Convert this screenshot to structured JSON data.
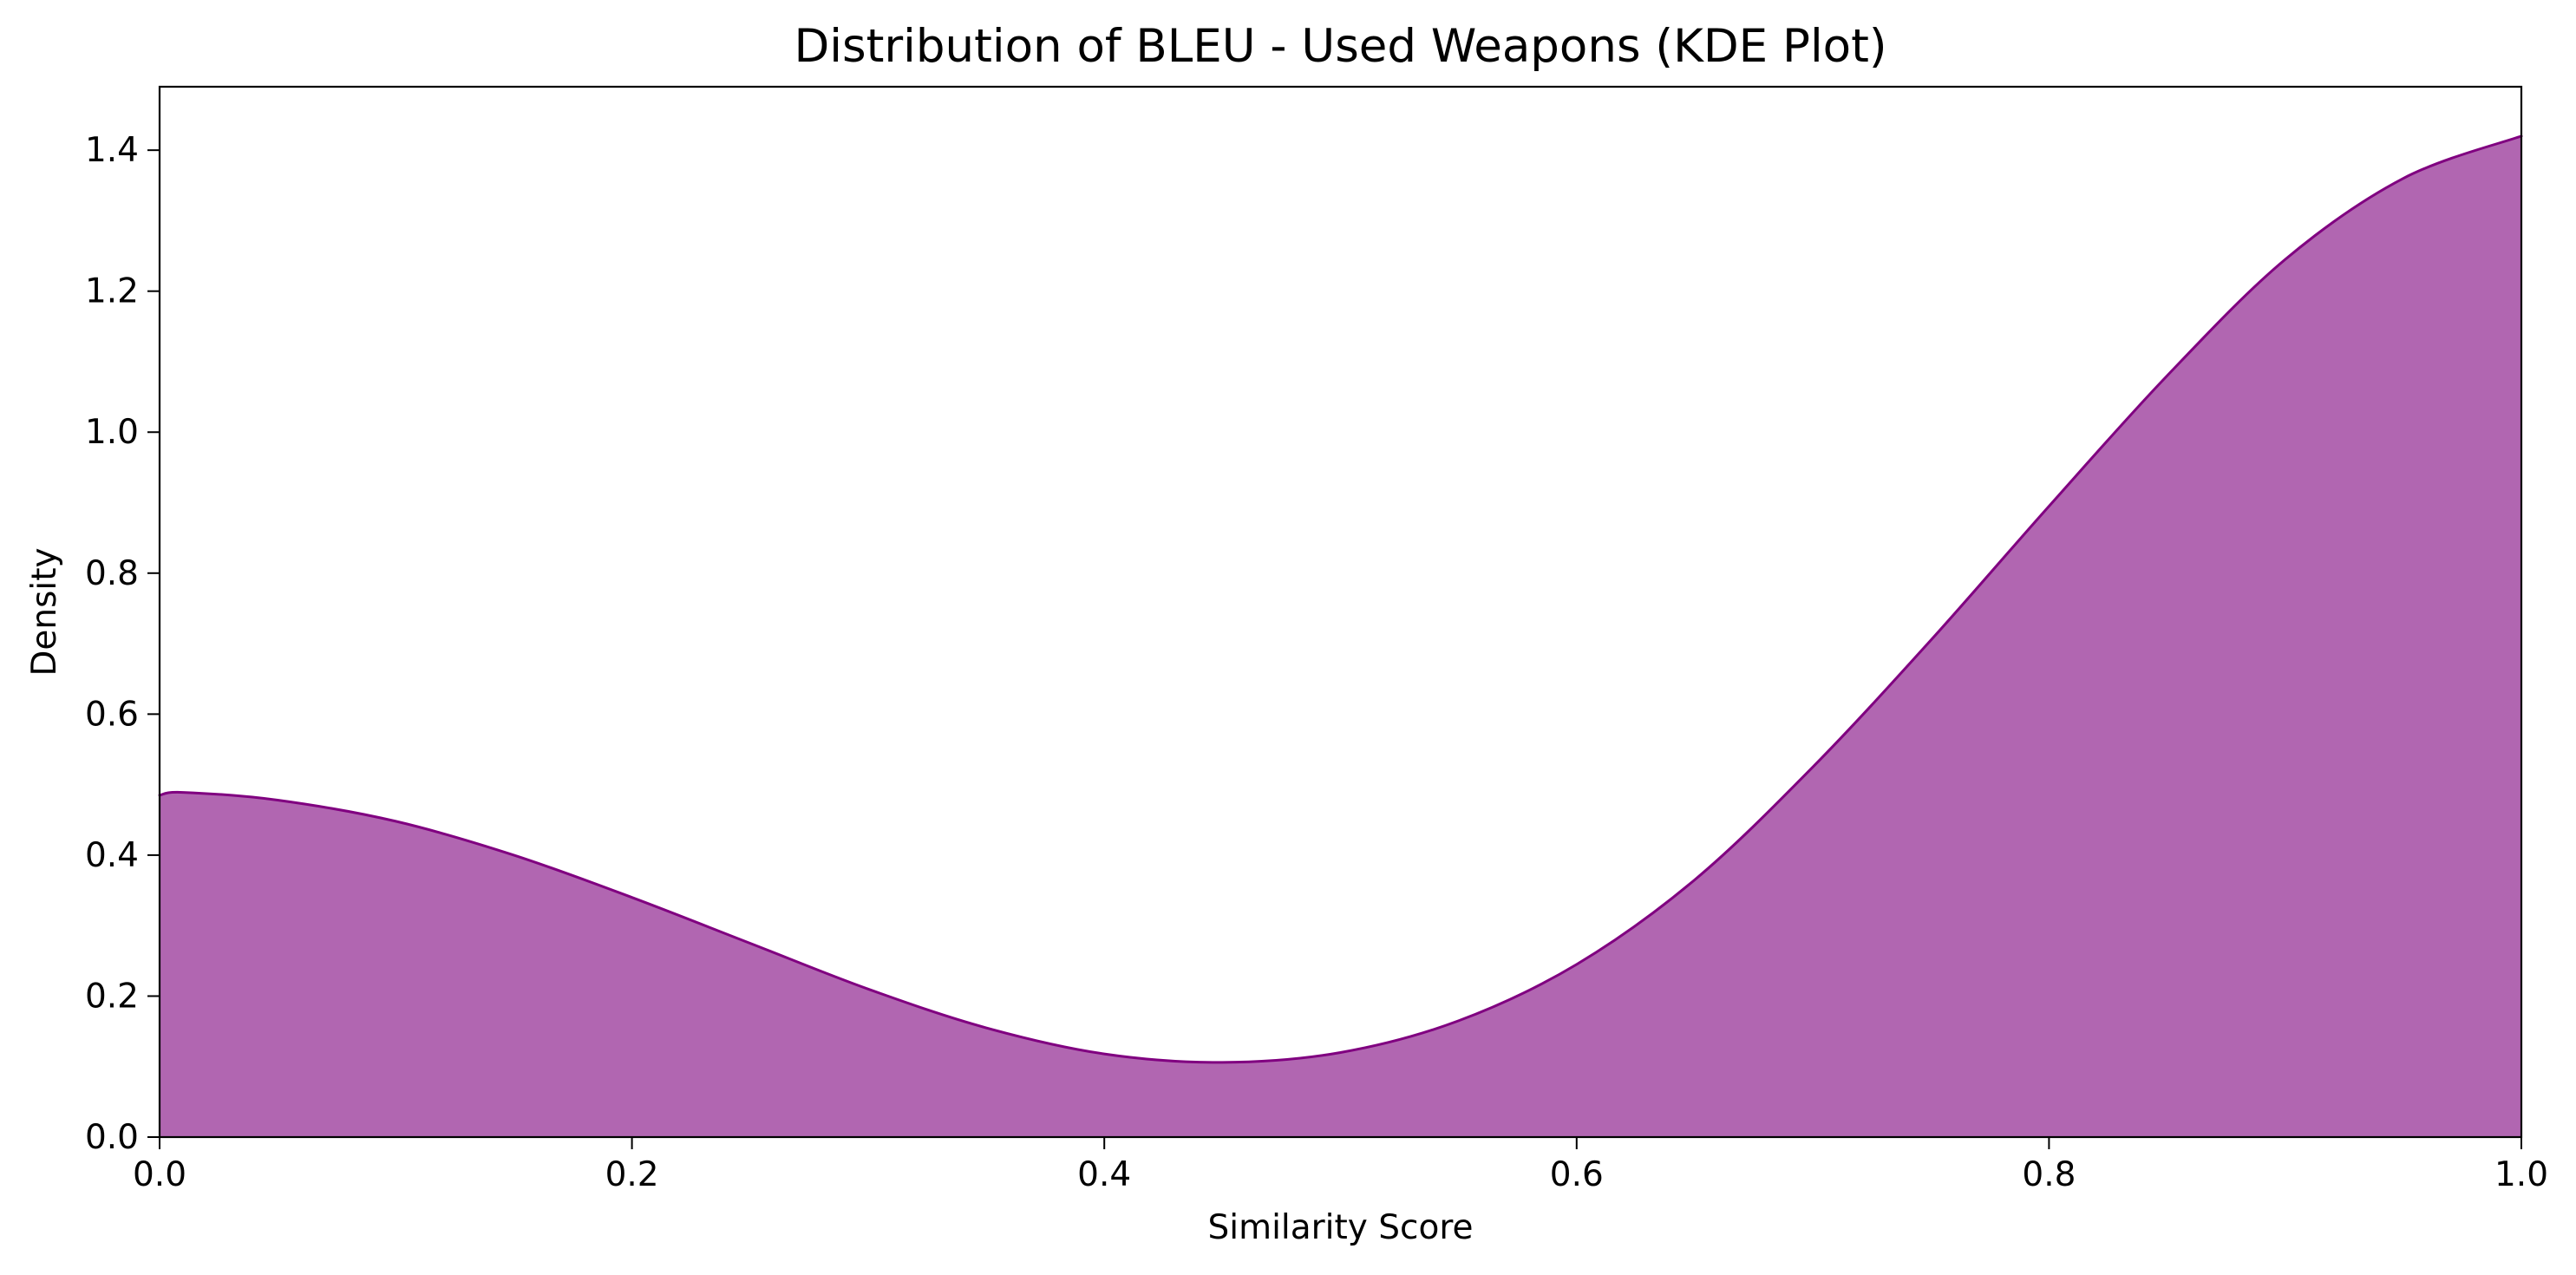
{
  "chart_data": {
    "type": "area",
    "title": "Distribution of BLEU - Used Weapons (KDE Plot)",
    "xlabel": "Similarity Score",
    "ylabel": "Density",
    "xlim": [
      0.0,
      1.0
    ],
    "ylim": [
      0.0,
      1.49
    ],
    "x_ticks": [
      0.0,
      0.2,
      0.4,
      0.6,
      0.8,
      1.0
    ],
    "x_tick_labels": [
      "0.0",
      "0.2",
      "0.4",
      "0.6",
      "0.8",
      "1.0"
    ],
    "y_ticks": [
      0.0,
      0.2,
      0.4,
      0.6,
      0.8,
      1.0,
      1.2,
      1.4
    ],
    "y_tick_labels": [
      "0.0",
      "0.2",
      "0.4",
      "0.6",
      "0.8",
      "1.0",
      "1.2",
      "1.4"
    ],
    "grid": false,
    "legend": "none",
    "colors": {
      "fill": "#b166b1",
      "line": "#800080"
    },
    "series": [
      {
        "x": [
          0.0,
          0.01,
          0.05,
          0.1,
          0.15,
          0.2,
          0.25,
          0.3,
          0.35,
          0.4,
          0.45,
          0.5,
          0.55,
          0.6,
          0.65,
          0.7,
          0.75,
          0.8,
          0.85,
          0.9,
          0.95,
          1.0
        ],
        "values": [
          0.485,
          0.489,
          0.478,
          0.448,
          0.4,
          0.34,
          0.275,
          0.21,
          0.155,
          0.118,
          0.106,
          0.12,
          0.165,
          0.245,
          0.365,
          0.525,
          0.705,
          0.895,
          1.08,
          1.245,
          1.36,
          1.42
        ]
      }
    ]
  }
}
